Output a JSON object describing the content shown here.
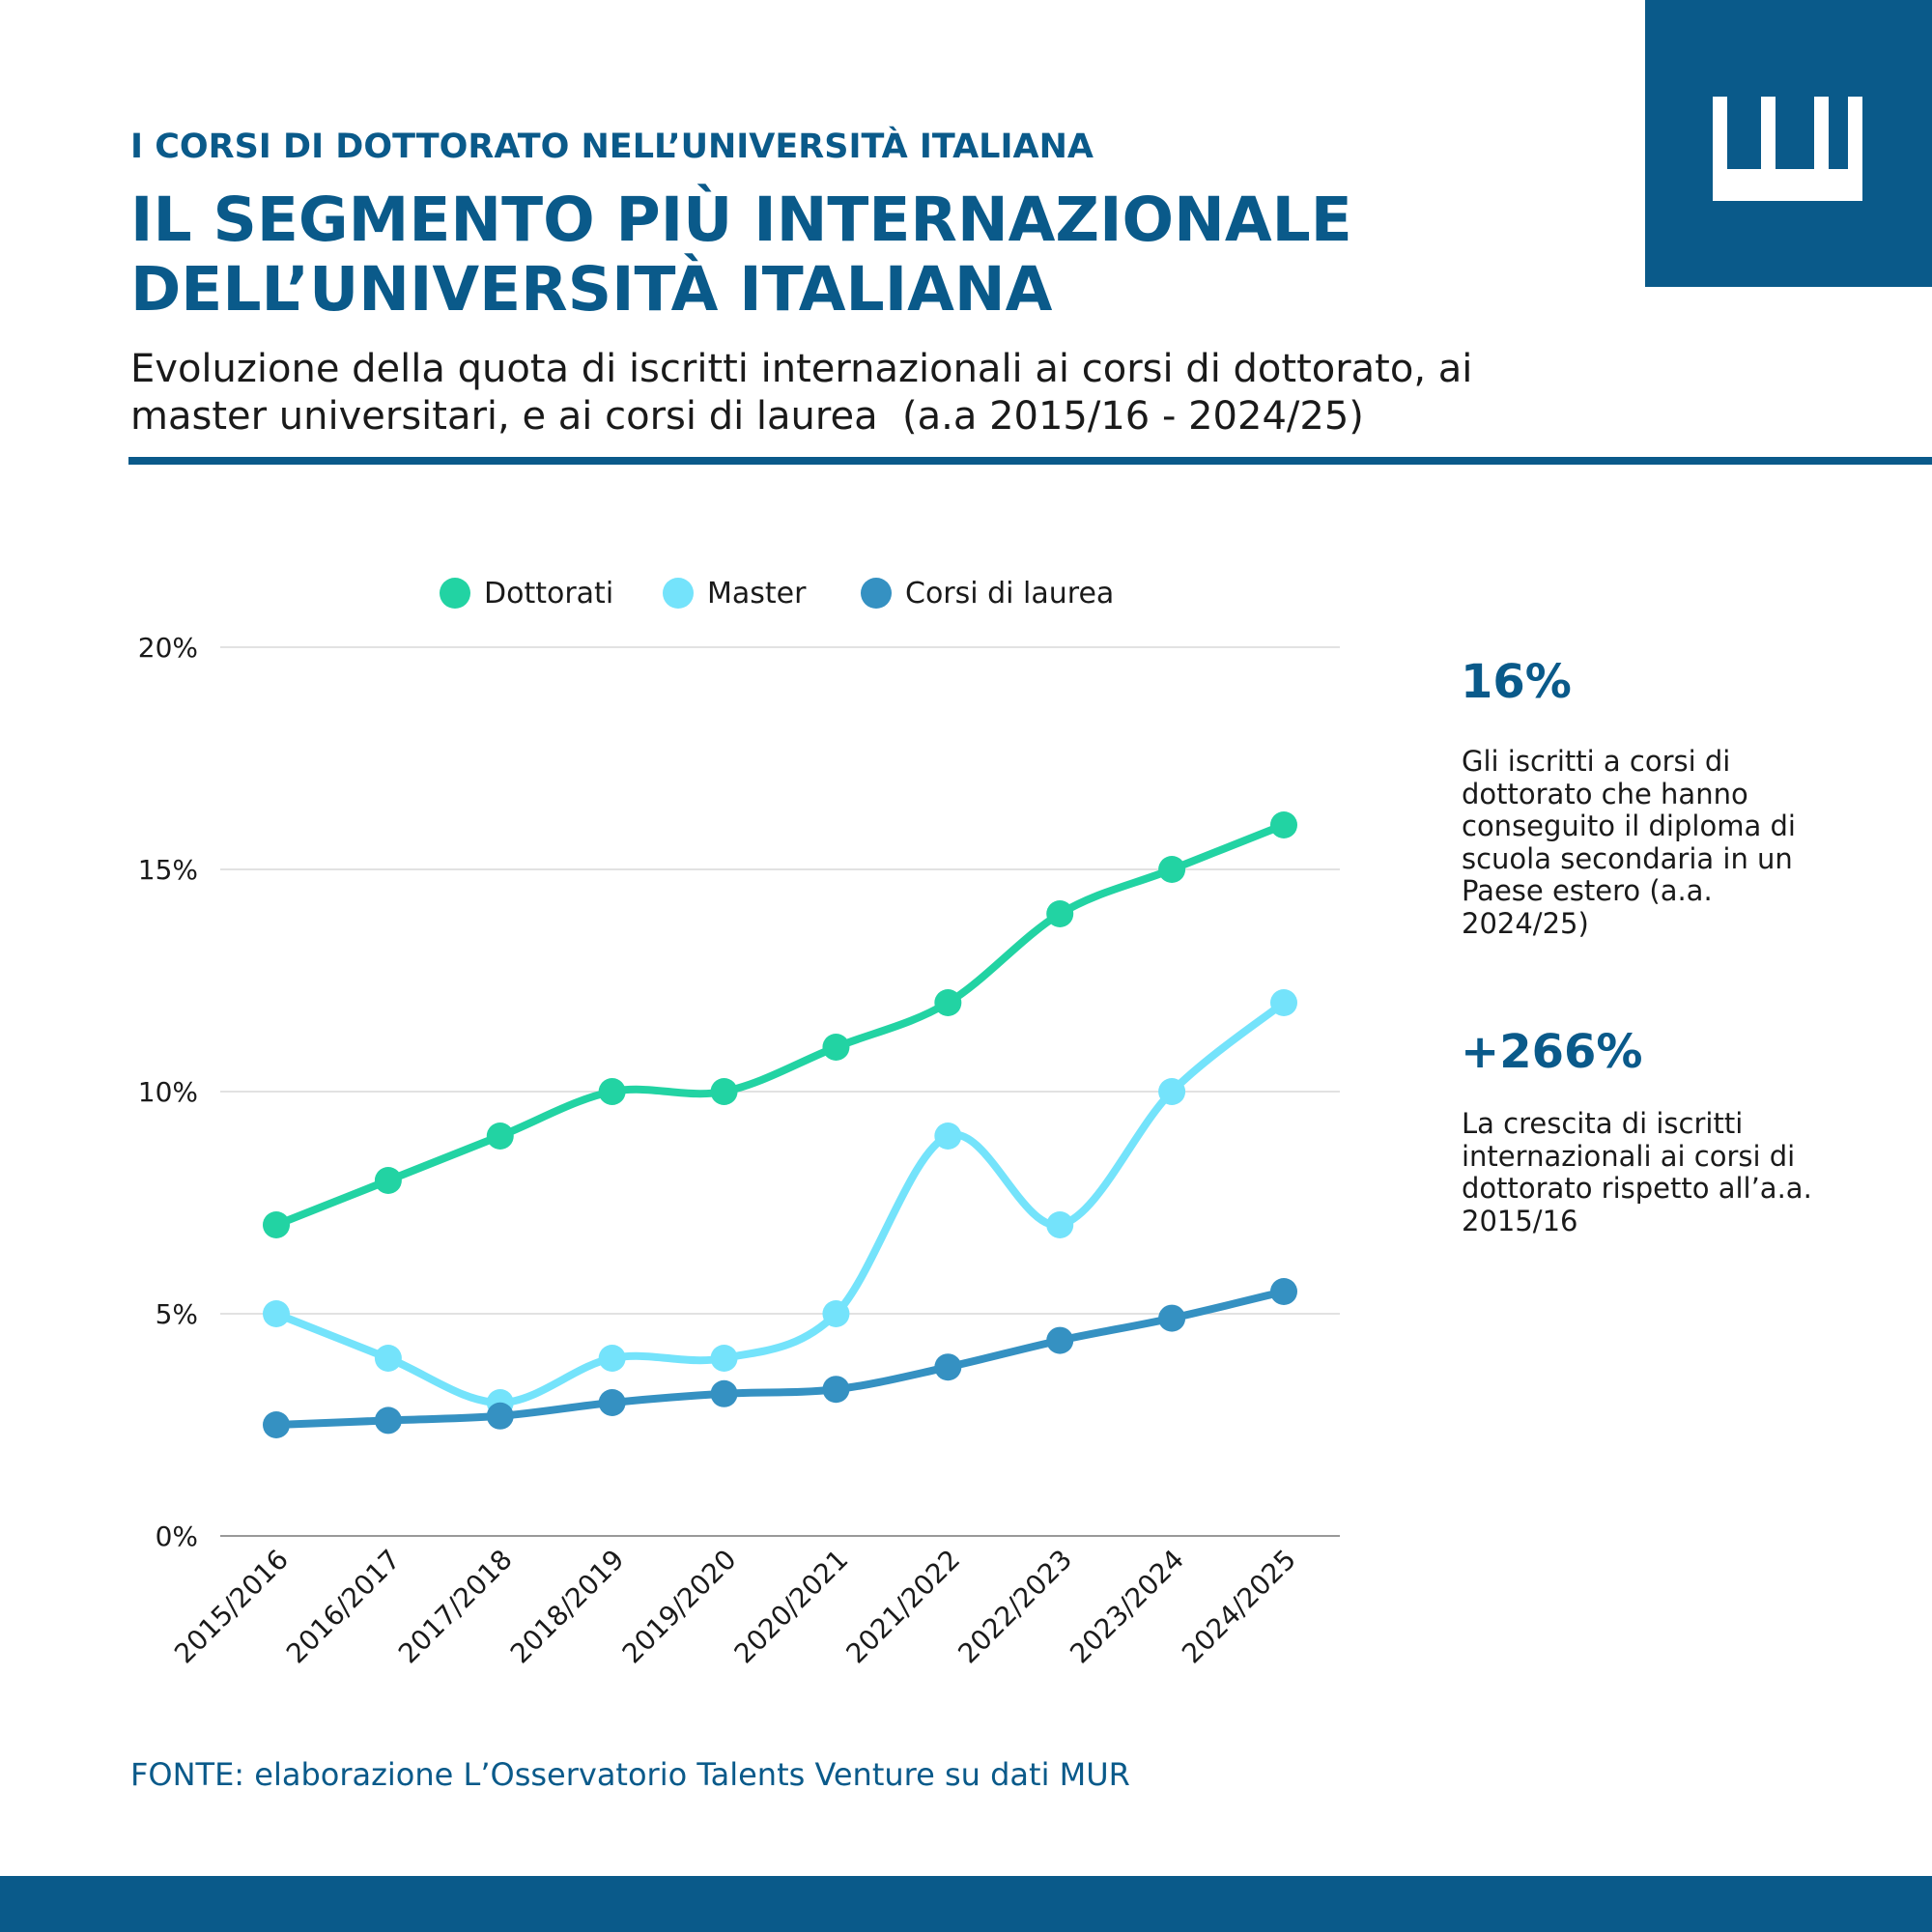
{
  "header": {
    "kicker": "I CORSI DI DOTTORATO NELL’UNIVERSITÀ ITALIANA",
    "title_lines": [
      "IL SEGMENTO PIÙ INTERNAZIONALE",
      "DELL’UNIVERSITÀ ITALIANA"
    ],
    "subtitle_lines": [
      "Evoluzione della quota di iscritti internazionali ai corsi di dottorato, ai",
      "master universitari, e ai corsi di laurea  (a.a 2015/16 - 2024/25)"
    ]
  },
  "chart_data": {
    "type": "line",
    "title": "",
    "xlabel": "",
    "ylabel": "",
    "categories": [
      "2015/2016",
      "2016/2017",
      "2017/2018",
      "2018/2019",
      "2019/2020",
      "2020/2021",
      "2021/2022",
      "2022/2023",
      "2023/2024",
      "2024/2025"
    ],
    "series": [
      {
        "name": "Dottorati",
        "color": "#22d3a3",
        "values": [
          7,
          8,
          9,
          10,
          10,
          11,
          12,
          14,
          15,
          16
        ]
      },
      {
        "name": "Master",
        "color": "#74e3fb",
        "values": [
          5,
          4,
          3,
          4,
          4,
          5,
          9,
          7,
          10,
          12
        ]
      },
      {
        "name": "Corsi di laurea",
        "color": "#3591c2",
        "values": [
          2.5,
          2.6,
          2.7,
          3.0,
          3.2,
          3.3,
          3.8,
          4.4,
          4.9,
          5.5
        ]
      }
    ],
    "ylim": [
      0,
      20
    ],
    "yticks": [
      0,
      5,
      10,
      15,
      20
    ],
    "ytick_labels": [
      "0%",
      "5%",
      "10%",
      "15%",
      "20%"
    ],
    "grid": true,
    "legend_position": "top"
  },
  "stats": [
    {
      "value": "16%",
      "description_lines": [
        "Gli iscritti a corsi di",
        "dottorato che hanno",
        "conseguito il diploma di",
        "scuola secondaria in un",
        "Paese estero (a.a.",
        "2024/25)"
      ]
    },
    {
      "value": "+266%",
      "description_lines": [
        "La crescita di iscritti",
        "internazionali ai corsi di",
        "dottorato rispetto all’a.a.",
        "2015/16"
      ]
    }
  ],
  "source": "FONTE: elaborazione L’Osservatorio Talents Venture su dati MUR",
  "colors": {
    "brand": "#0a5a8a",
    "grid": "#d9d9d9",
    "axis": "#999999"
  },
  "icons": {
    "logo": "crown-logo-icon"
  }
}
